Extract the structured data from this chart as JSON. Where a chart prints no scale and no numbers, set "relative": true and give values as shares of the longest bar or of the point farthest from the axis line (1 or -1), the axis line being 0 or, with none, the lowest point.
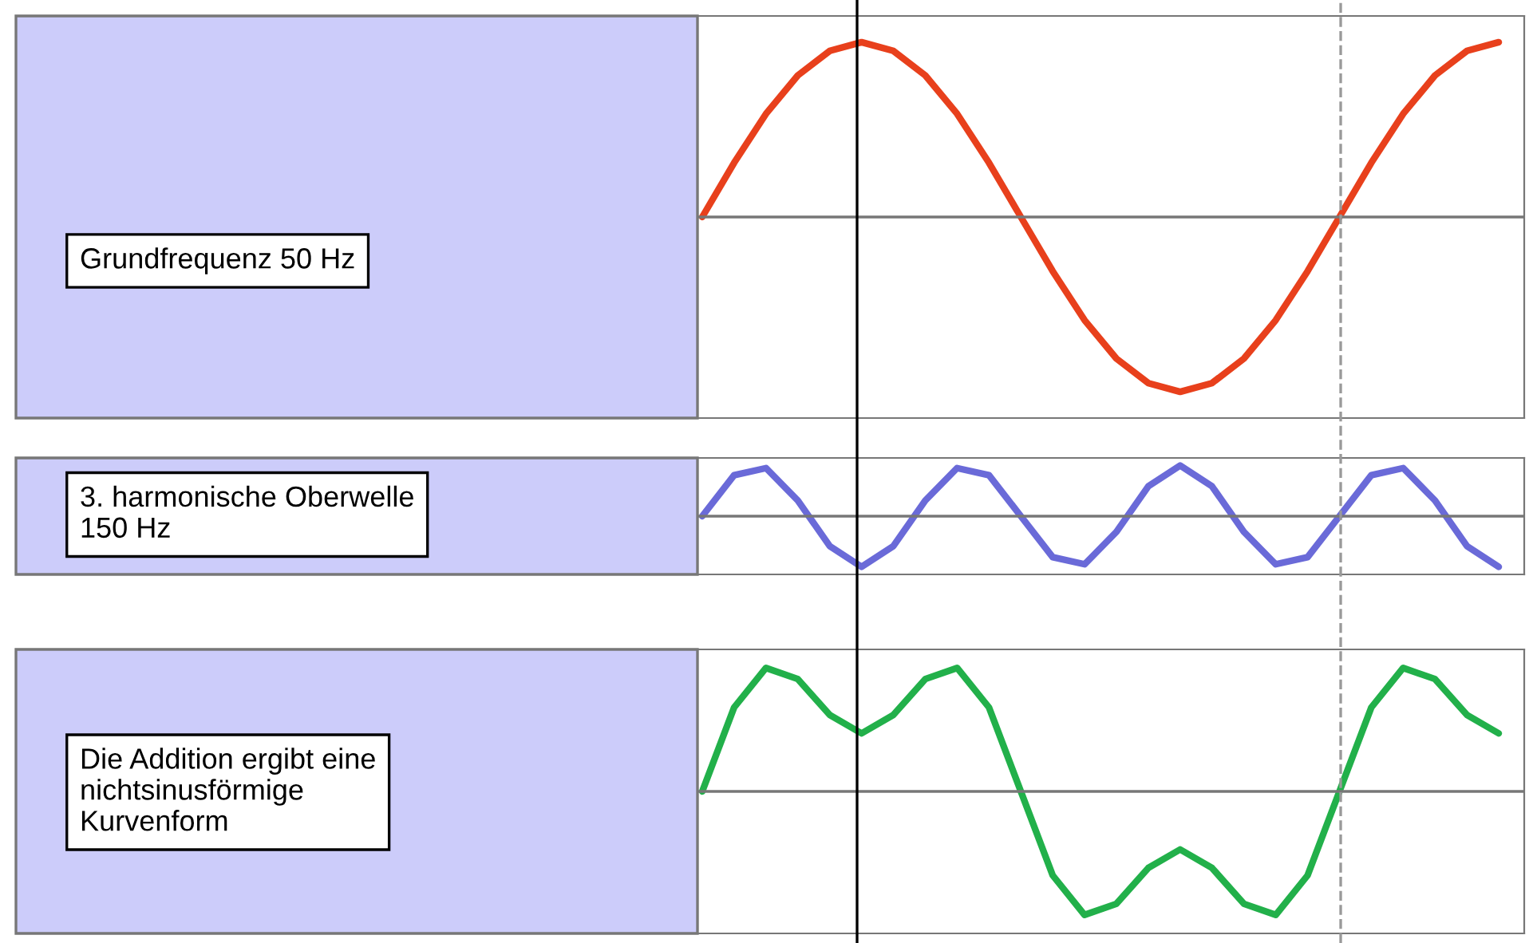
{
  "chart_data": [
    {
      "type": "line",
      "relative": true,
      "categories": [
        null,
        null,
        null,
        null,
        null,
        null,
        null,
        null,
        null,
        null,
        null,
        null,
        null,
        null,
        null,
        null,
        null,
        null,
        null,
        null,
        null,
        null,
        null,
        null,
        null,
        null
      ],
      "series": [
        {
          "color": "#e8401c",
          "values": [
            0,
            0.31,
            0.59,
            0.81,
            0.95,
            1,
            0.95,
            0.81,
            0.59,
            0.31,
            0,
            -0.31,
            -0.59,
            -0.81,
            -0.95,
            -1,
            -0.95,
            -0.81,
            -0.59,
            -0.31,
            0,
            0.31,
            0.59,
            0.81,
            0.95,
            1
          ]
        }
      ],
      "annotations": [
        "Grundfrequenz 50 Hz"
      ]
    },
    {
      "type": "line",
      "relative": true,
      "categories": [
        null,
        null,
        null,
        null,
        null,
        null,
        null,
        null,
        null,
        null,
        null,
        null,
        null,
        null,
        null,
        null,
        null,
        null,
        null,
        null,
        null,
        null,
        null,
        null,
        null,
        null
      ],
      "series": [
        {
          "color": "#6a6ad8",
          "values": [
            0,
            0.81,
            0.95,
            0.31,
            -0.59,
            -1,
            -0.59,
            0.31,
            0.95,
            0.81,
            0,
            -0.81,
            -0.95,
            -0.31,
            0.59,
            1,
            0.59,
            -0.31,
            -0.95,
            -0.81,
            0,
            0.81,
            0.95,
            0.31,
            -0.59,
            -1
          ]
        }
      ],
      "annotations": [
        "3. harmonische Oberwelle\n150 Hz"
      ]
    },
    {
      "type": "line",
      "relative": true,
      "categories": [
        null,
        null,
        null,
        null,
        null,
        null,
        null,
        null,
        null,
        null,
        null,
        null,
        null,
        null,
        null,
        null,
        null,
        null,
        null,
        null,
        null,
        null,
        null,
        null,
        null,
        null
      ],
      "series": [
        {
          "color": "#22b04a",
          "values": [
            0,
            0.68,
            1,
            0.91,
            0.62,
            0.47,
            0.62,
            0.91,
            1,
            0.68,
            0,
            -0.68,
            -1,
            -0.91,
            -0.62,
            -0.47,
            -0.62,
            -0.91,
            -1,
            -0.68,
            0,
            0.68,
            1,
            0.91,
            0.62,
            0.47
          ]
        }
      ],
      "annotations": [
        "Die Addition ergibt eine\nnichtsinusförmige\nKurvenform"
      ]
    }
  ]
}
